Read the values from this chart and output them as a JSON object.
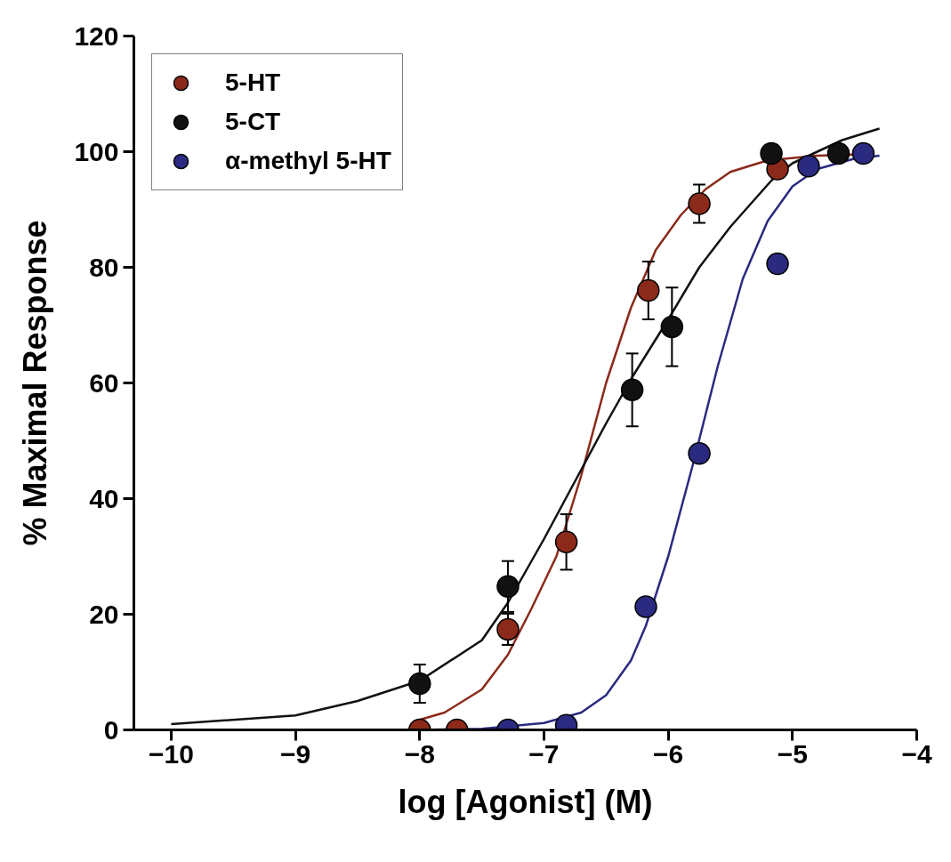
{
  "chart_data": {
    "type": "scatter",
    "xlabel": "log [Agonist] (M)",
    "ylabel": "% Maximal Response",
    "xlim": [
      -10.3,
      -4
    ],
    "xticks": [
      -10,
      -9,
      -8,
      -7,
      -6,
      -5,
      -4
    ],
    "ylim": [
      0,
      120
    ],
    "yticks": [
      0,
      20,
      40,
      60,
      80,
      100,
      120
    ],
    "grid": false,
    "legend": "top left",
    "marker": "circle",
    "series": [
      {
        "type": "line",
        "color": "#8b2a1a",
        "marker": "none",
        "x": [
          -8.04,
          -7.8,
          -7.5,
          -7.29,
          -7.1,
          -6.9,
          -6.7,
          -6.5,
          -6.3,
          -6.1,
          -5.9,
          -5.7,
          -5.5,
          -5.2,
          -4.8,
          -4.5
        ],
        "values": [
          1.5,
          3,
          7,
          13,
          21,
          30,
          44,
          60,
          73,
          83,
          89,
          93.5,
          96.5,
          98.5,
          99.3,
          99.5
        ]
      },
      {
        "type": "line",
        "color": "#111111",
        "marker": "none",
        "x": [
          -10,
          -9,
          -8.5,
          -8,
          -7.5,
          -7.29,
          -7,
          -6.7,
          -6.5,
          -6.29,
          -6,
          -5.75,
          -5.5,
          -5.17,
          -5,
          -4.6,
          -4.3
        ],
        "values": [
          1,
          2.5,
          5,
          8.5,
          15.5,
          22,
          33,
          45,
          53,
          61,
          71,
          80,
          87,
          95,
          98,
          102,
          104
        ]
      },
      {
        "type": "line",
        "color": "#2a2a80",
        "marker": "none",
        "x": [
          -8,
          -7.5,
          -7,
          -6.7,
          -6.5,
          -6.3,
          -6.18,
          -6,
          -5.8,
          -5.6,
          -5.4,
          -5.2,
          -5,
          -4.8,
          -4.5,
          -4.3
        ],
        "values": [
          0,
          0.2,
          1.2,
          3,
          6,
          12,
          18,
          30,
          46,
          63,
          78,
          88,
          94,
          97,
          98.8,
          99.3
        ]
      },
      {
        "name": "5-HT",
        "color": "#8b2a1a",
        "x": [
          -8.0,
          -7.7,
          -7.29,
          -6.82,
          -6.16,
          -5.75,
          -5.12
        ],
        "values": [
          0,
          0,
          17.4,
          32.5,
          76,
          91,
          97
        ],
        "errors": [
          null,
          null,
          2.7,
          4.8,
          5,
          3.3,
          null
        ]
      },
      {
        "name": "5-CT",
        "color": "#111111",
        "x": [
          -8.0,
          -7.29,
          -6.29,
          -5.97,
          -5.17,
          -4.63
        ],
        "values": [
          8,
          24.8,
          58.8,
          69.7,
          99.7,
          99.7
        ],
        "errors": [
          3.3,
          4.4,
          6.3,
          6.8,
          null,
          null
        ]
      },
      {
        "name": "α-methyl 5-HT",
        "color": "#2a2a80",
        "x": [
          -7.29,
          -6.82,
          -6.18,
          -5.75,
          -5.12,
          -4.87,
          -4.43
        ],
        "values": [
          0,
          0.8,
          21.3,
          47.8,
          80.6,
          97.5,
          99.7
        ],
        "errors": [
          null,
          null,
          1.5,
          null,
          1.5,
          null,
          null
        ]
      }
    ]
  }
}
